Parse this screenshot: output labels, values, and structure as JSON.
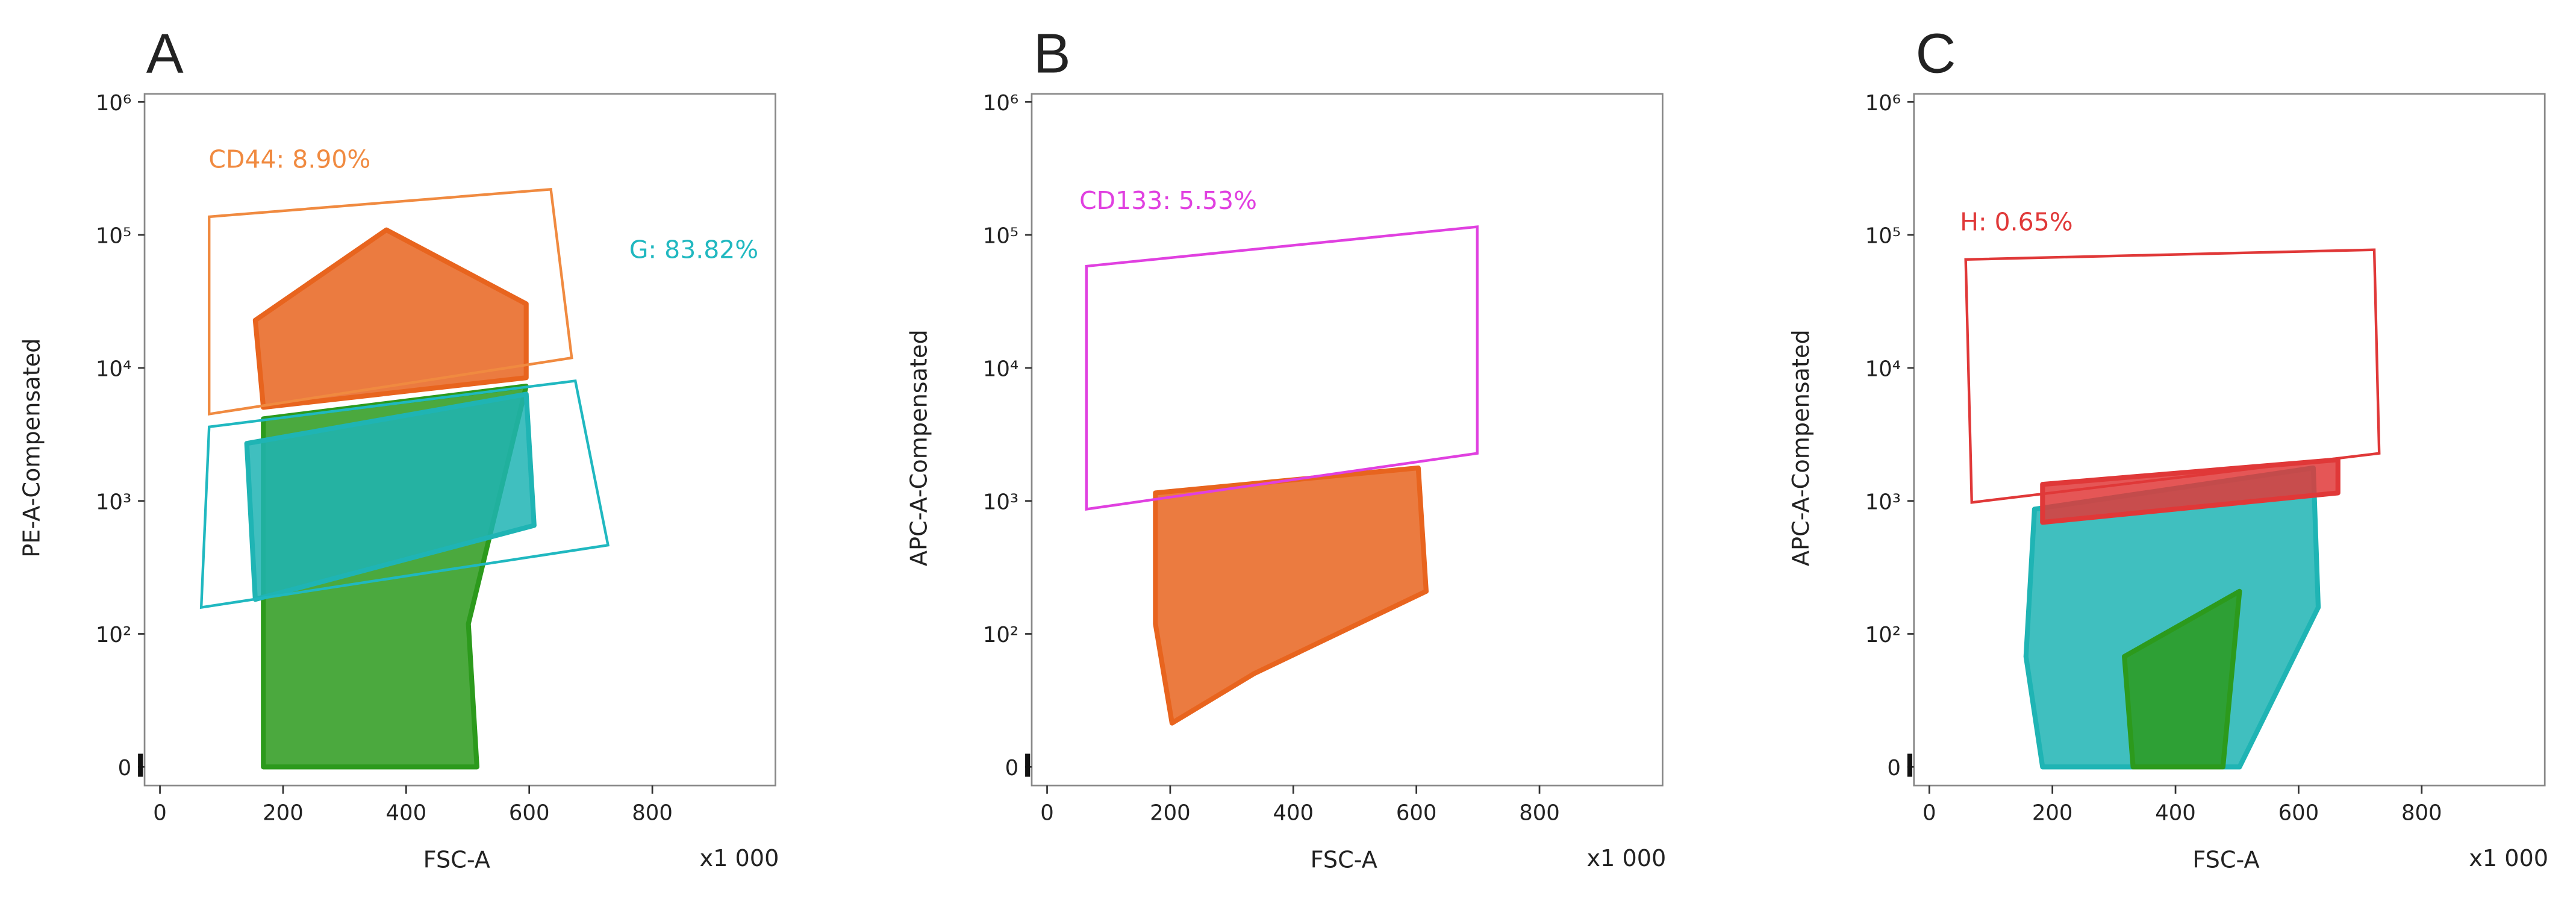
{
  "chart_data": [
    {
      "type": "scatter",
      "title": "A",
      "xlabel": "FSC-A",
      "ylabel": "PE-A-Compensated",
      "x_multiplier": "x1 000",
      "xlim": [
        -25,
        1000
      ],
      "xticks": [
        0,
        200,
        400,
        600,
        800
      ],
      "ylim": [
        -14,
        1150000
      ],
      "yscale": "biexponential",
      "yticks": [
        0,
        {
          "value": 100,
          "label": "10²"
        },
        {
          "value": 1000,
          "label": "10³"
        },
        {
          "value": 10000,
          "label": "10⁴"
        },
        {
          "value": 100000,
          "label": "10⁵"
        },
        {
          "value": 1000000,
          "label": "10⁶"
        }
      ],
      "regions": [
        {
          "color": "#2c9a1c",
          "x": [
            168,
            515,
            501,
            595,
            168
          ],
          "y": [
            0,
            0,
            119,
            7300,
            4140
          ]
        },
        {
          "color": "#1fb4b4",
          "x": [
            141,
            595,
            608,
            155
          ],
          "y": [
            2700,
            6340,
            653,
            182
          ]
        },
        {
          "color": "#e8641e",
          "x": [
            155,
            368,
            595,
            595,
            168
          ],
          "y": [
            22800,
            109000,
            30300,
            8430,
            5060
          ]
        }
      ],
      "gates": [
        {
          "label": "CD44: 8.90%",
          "color": "#f08a40",
          "x": [
            80,
            635,
            669,
            80
          ],
          "y": [
            136800,
            220000,
            11900,
            4500
          ]
        },
        {
          "label": "G: 83.82%",
          "color": "#20b8c0",
          "x": [
            80,
            675,
            728,
            67
          ],
          "y": [
            3600,
            8000,
            465,
            158
          ]
        }
      ]
    },
    {
      "type": "scatter",
      "title": "B",
      "xlabel": "FSC-A",
      "ylabel": "APC-A-Compensated",
      "x_multiplier": "x1 000",
      "xlim": [
        -25,
        1000
      ],
      "xticks": [
        0,
        200,
        400,
        600,
        800
      ],
      "ylim": [
        -14,
        1150000
      ],
      "yscale": "biexponential",
      "yticks": [
        0,
        {
          "value": 100,
          "label": "10²"
        },
        {
          "value": 1000,
          "label": "10³"
        },
        {
          "value": 10000,
          "label": "10⁴"
        },
        {
          "value": 100000,
          "label": "10⁵"
        },
        {
          "value": 1000000,
          "label": "10⁶"
        }
      ],
      "regions": [
        {
          "color": "#e8641e",
          "x": [
            176,
            603,
            616,
            336,
            203,
            176
          ],
          "y": [
            1150,
            1770,
            209,
            70,
            33,
            119
          ]
        }
      ],
      "gates": [
        {
          "label": "CD133: 5.53%",
          "color": "#e040e0",
          "x": [
            64,
            699,
            699,
            64
          ],
          "y": [
            58200,
            115300,
            2280,
            867
          ]
        }
      ]
    },
    {
      "type": "scatter",
      "title": "C",
      "xlabel": "FSC-A",
      "ylabel": "APC-A-Compensated",
      "x_multiplier": "x1 000",
      "xlim": [
        -25,
        1000
      ],
      "xticks": [
        0,
        200,
        400,
        600,
        800
      ],
      "ylim": [
        -14,
        1150000
      ],
      "yscale": "biexponential",
      "yticks": [
        0,
        {
          "value": 100,
          "label": "10²"
        },
        {
          "value": 1000,
          "label": "10³"
        },
        {
          "value": 10000,
          "label": "10⁴"
        },
        {
          "value": 100000,
          "label": "10⁵"
        },
        {
          "value": 1000000,
          "label": "10⁶"
        }
      ],
      "regions": [
        {
          "color": "#1fb4b4",
          "x": [
            171,
            624,
            632,
            504,
            184,
            157
          ],
          "y": [
            867,
            1770,
            158,
            0,
            0,
            83
          ]
        },
        {
          "color": "#2c9a1c",
          "x": [
            317,
            504,
            477,
            331
          ],
          "y": [
            83,
            209,
            0,
            0
          ]
        },
        {
          "color": "#e03838",
          "x": [
            184,
            664,
            664,
            184
          ],
          "y": [
            1330,
            2040,
            1150,
            690
          ]
        }
      ],
      "gates": [
        {
          "label": "H: 0.65%",
          "color": "#e03838",
          "x": [
            59,
            723,
            731,
            69
          ],
          "y": [
            65300,
            77400,
            2280,
            973
          ]
        }
      ]
    }
  ]
}
